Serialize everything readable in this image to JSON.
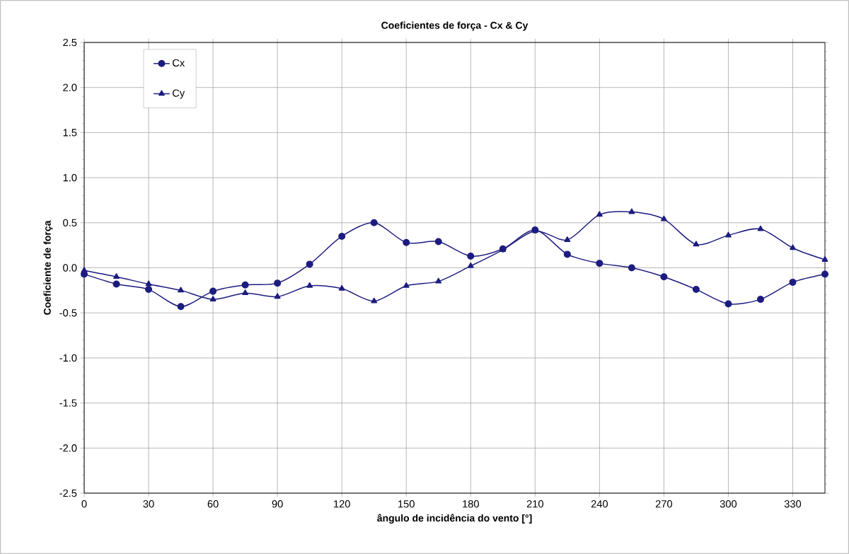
{
  "chart_data": {
    "type": "line",
    "title": "Coeficientes de força - Cx & Cy",
    "xlabel": "ângulo de incidência do vento [°]",
    "ylabel": "Coeficiente de força",
    "x": [
      0,
      15,
      30,
      45,
      60,
      75,
      90,
      105,
      120,
      135,
      150,
      165,
      180,
      195,
      210,
      225,
      240,
      255,
      270,
      285,
      300,
      315,
      330,
      345
    ],
    "series": [
      {
        "name": "Cx",
        "color": "#1c1c80",
        "marker": "circle",
        "values": [
          -0.07,
          -0.18,
          -0.24,
          -0.43,
          -0.26,
          -0.19,
          -0.17,
          0.04,
          0.35,
          0.5,
          0.28,
          0.29,
          0.13,
          0.21,
          0.42,
          0.15,
          0.05,
          0.0,
          -0.1,
          -0.24,
          -0.4,
          -0.35,
          -0.16,
          -0.07
        ]
      },
      {
        "name": "Cy",
        "color": "#1c1c80",
        "marker": "triangle",
        "values": [
          -0.03,
          -0.1,
          -0.18,
          -0.25,
          -0.35,
          -0.28,
          -0.32,
          -0.2,
          -0.23,
          -0.37,
          -0.2,
          -0.15,
          0.02,
          0.2,
          0.41,
          0.31,
          0.59,
          0.62,
          0.54,
          0.26,
          0.36,
          0.43,
          0.22,
          0.09
        ]
      }
    ],
    "xlim": [
      0,
      345
    ],
    "xticks": [
      0,
      30,
      60,
      90,
      120,
      150,
      180,
      210,
      240,
      270,
      300,
      330
    ],
    "ylim": [
      -2.5,
      2.5
    ],
    "yticks": [
      {
        "value": -2.5,
        "label": "-2.5"
      },
      {
        "value": -2.0,
        "label": "-2.0"
      },
      {
        "value": -1.5,
        "label": "-1.5"
      },
      {
        "value": -1.0,
        "label": "-1.0"
      },
      {
        "value": -0.5,
        "label": "-0.5"
      },
      {
        "value": 0.0,
        "label": "0.0"
      },
      {
        "value": 0.5,
        "label": "0.5"
      },
      {
        "value": 1.0,
        "label": "1.0"
      },
      {
        "value": 1.5,
        "label": "1.5"
      },
      {
        "value": 2.0,
        "label": "2.0"
      },
      {
        "value": 2.5,
        "label": "2.5"
      }
    ],
    "grid": true,
    "legend": "top left"
  }
}
